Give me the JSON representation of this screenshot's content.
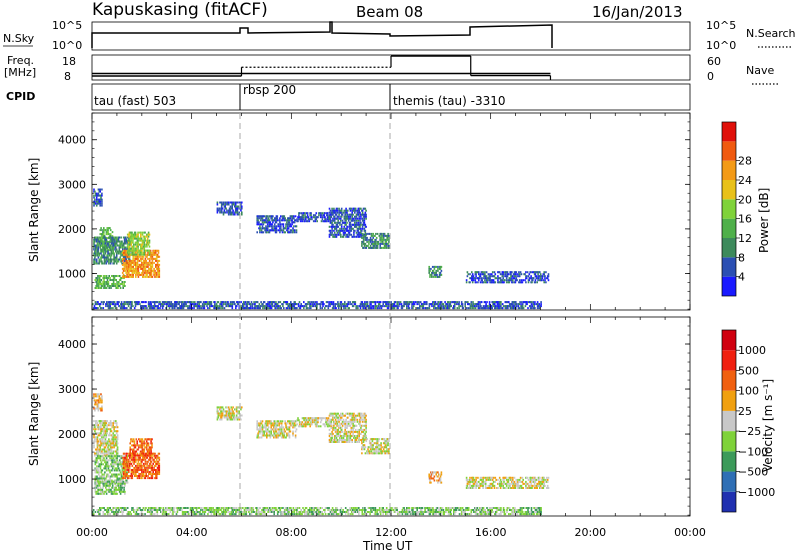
{
  "header": {
    "station": "Kapuskasing (fitACF)",
    "beam": "Beam 08",
    "date": "16/Jan/2013"
  },
  "nsky_panel": {
    "left_label": "N.Sky",
    "left_ticks": [
      "10^5",
      "10^0"
    ],
    "right_ticks": [
      "10^5",
      "10^0"
    ],
    "right_label": "N.Search"
  },
  "freq_panel": {
    "left_label_line1": "Freq.",
    "left_label_line2": "[MHz]",
    "left_ticks": [
      "18",
      "8"
    ],
    "right_ticks": [
      "60",
      "0"
    ],
    "right_label": "Nave",
    "freq_steps": [
      {
        "t0": 0,
        "t1": 6,
        "mhz": 10.6
      },
      {
        "t0": 6,
        "t1": 12,
        "mhz": 10.6
      },
      {
        "t0": 12,
        "t1": 15.2,
        "mhz": 10.6
      },
      {
        "t0": 15.2,
        "t1": 18.4,
        "mhz": 10.6
      }
    ],
    "nave_steps": [
      {
        "t0": 0,
        "t1": 6,
        "nave": 12
      },
      {
        "t0": 6,
        "t1": 12,
        "nave": 33
      },
      {
        "t0": 12,
        "t1": 15.2,
        "nave": 60
      },
      {
        "t0": 15.2,
        "t1": 18.4,
        "nave": 13
      }
    ]
  },
  "cpid_panel": {
    "label": "CPID",
    "modes": [
      {
        "t": 0,
        "text": "tau (fast) 503"
      },
      {
        "t": 6,
        "text": "rbsp 200"
      },
      {
        "t": 12,
        "text": "themis (tau) -3310"
      }
    ]
  },
  "chart_data": [
    {
      "type": "scatter",
      "panel": "power",
      "ylabel": "Slant Range [km]",
      "xlim": [
        0,
        24
      ],
      "ylim": [
        180,
        4600
      ],
      "yticks": [
        "1000",
        "2000",
        "3000",
        "4000"
      ],
      "colorbar": {
        "label": "Power [dB]",
        "ticks": [
          "4",
          "8",
          "12",
          "16",
          "20",
          "24",
          "28"
        ],
        "colors": [
          "#1a1aff",
          "#2b4fb3",
          "#3d8a5c",
          "#4fb04a",
          "#7fd23a",
          "#e8c11a",
          "#f39a16",
          "#f05a10",
          "#e0100a"
        ]
      },
      "regions": [
        {
          "t0": 0.05,
          "t1": 0.4,
          "r0": 2500,
          "r1": 2900,
          "level": 1
        },
        {
          "t0": 0.3,
          "t1": 0.8,
          "r0": 1500,
          "r1": 2000,
          "level": 3
        },
        {
          "t0": 0.05,
          "t1": 1.5,
          "r0": 1200,
          "r1": 1800,
          "level": 2
        },
        {
          "t0": 0.1,
          "t1": 1.3,
          "r0": 650,
          "r1": 950,
          "level": 3
        },
        {
          "t0": 1.2,
          "t1": 2.7,
          "r0": 900,
          "r1": 1500,
          "level": 6
        },
        {
          "t0": 1.4,
          "t1": 2.3,
          "r0": 1400,
          "r1": 1900,
          "level": 4
        },
        {
          "t0": 5.0,
          "t1": 6.0,
          "r0": 2300,
          "r1": 2600,
          "level": 1
        },
        {
          "t0": 6.6,
          "t1": 8.2,
          "r0": 1900,
          "r1": 2300,
          "level": 1
        },
        {
          "t0": 8.2,
          "t1": 9.6,
          "r0": 2150,
          "r1": 2350,
          "level": 1
        },
        {
          "t0": 9.5,
          "t1": 11.0,
          "r0": 1800,
          "r1": 2450,
          "level": 1
        },
        {
          "t0": 10.8,
          "t1": 11.9,
          "r0": 1550,
          "r1": 1900,
          "level": 2
        },
        {
          "t0": 13.5,
          "t1": 14.0,
          "r0": 900,
          "r1": 1150,
          "level": 2
        },
        {
          "t0": 15.0,
          "t1": 18.3,
          "r0": 780,
          "r1": 1050,
          "level": 1
        },
        {
          "t0": 0.0,
          "t1": 18.0,
          "r0": 200,
          "r1": 350,
          "level": 1
        }
      ]
    },
    {
      "type": "scatter",
      "panel": "velocity",
      "ylabel": "Slant Range [km]",
      "xlabel": "Time UT",
      "xlim": [
        0,
        24
      ],
      "ylim": [
        180,
        4600
      ],
      "yticks": [
        "1000",
        "2000",
        "3000",
        "4000"
      ],
      "xticks": [
        "00:00",
        "04:00",
        "08:00",
        "12:00",
        "16:00",
        "20:00",
        "00:00"
      ],
      "colorbar": {
        "label": "Velocity [m s⁻¹]",
        "ticks": [
          "1000",
          "500",
          "100",
          "25",
          "−25",
          "−100",
          "−500",
          "−1000"
        ],
        "colors": [
          "#2030b0",
          "#2f6fb5",
          "#3c9a5a",
          "#7fd23a",
          "#c8c8c8",
          "#f0a010",
          "#f06010",
          "#f02010",
          "#d00010"
        ]
      },
      "regions": [
        {
          "t0": 0.05,
          "t1": 0.4,
          "r0": 2500,
          "r1": 2900,
          "level": 5
        },
        {
          "t0": 0.05,
          "t1": 1.0,
          "r0": 1500,
          "r1": 2300,
          "level": 4
        },
        {
          "t0": 0.1,
          "t1": 1.4,
          "r0": 900,
          "r1": 1500,
          "level": 3
        },
        {
          "t0": 0.1,
          "t1": 1.3,
          "r0": 650,
          "r1": 950,
          "level": 3
        },
        {
          "t0": 1.2,
          "t1": 2.7,
          "r0": 1000,
          "r1": 1550,
          "level": 6
        },
        {
          "t0": 1.5,
          "t1": 2.4,
          "r0": 1500,
          "r1": 1900,
          "level": 6
        },
        {
          "t0": 5.0,
          "t1": 6.0,
          "r0": 2300,
          "r1": 2600,
          "level": 4
        },
        {
          "t0": 6.6,
          "t1": 8.2,
          "r0": 1900,
          "r1": 2300,
          "level": 4
        },
        {
          "t0": 8.2,
          "t1": 9.6,
          "r0": 2150,
          "r1": 2350,
          "level": 4
        },
        {
          "t0": 9.5,
          "t1": 11.0,
          "r0": 1800,
          "r1": 2450,
          "level": 4
        },
        {
          "t0": 10.8,
          "t1": 11.9,
          "r0": 1550,
          "r1": 1900,
          "level": 4
        },
        {
          "t0": 13.5,
          "t1": 14.0,
          "r0": 900,
          "r1": 1150,
          "level": 5
        },
        {
          "t0": 15.0,
          "t1": 18.3,
          "r0": 780,
          "r1": 1050,
          "level": 4
        },
        {
          "t0": 0.0,
          "t1": 18.0,
          "r0": 200,
          "r1": 350,
          "level": 3
        }
      ]
    }
  ]
}
